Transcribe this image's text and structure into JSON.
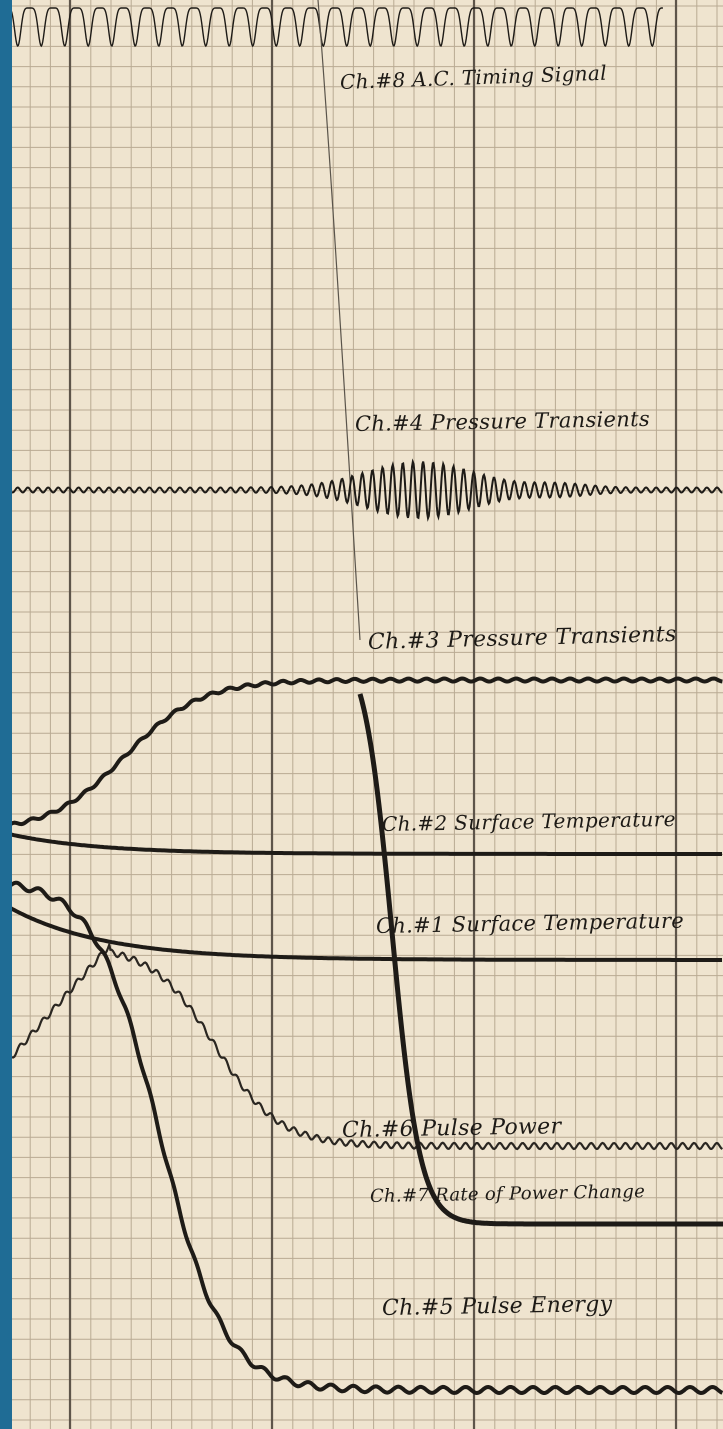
{
  "recording": {
    "channels": [
      {
        "id": "ch8",
        "label": "Ch.#8 A.C. Timing Signal"
      },
      {
        "id": "ch4",
        "label": "Ch.#4 Pressure Transients"
      },
      {
        "id": "ch3",
        "label": "Ch.#3 Pressure Transients"
      },
      {
        "id": "ch2",
        "label": "Ch.#2 Surface Temperature"
      },
      {
        "id": "ch1",
        "label": "Ch.#1 Surface Temperature"
      },
      {
        "id": "ch6",
        "label": "Ch.#6 Pulse Power"
      },
      {
        "id": "ch7",
        "label": "Ch.#7 Rate of Power Change"
      },
      {
        "id": "ch5",
        "label": "Ch.#5 Pulse Energy"
      }
    ]
  },
  "colors": {
    "paper": "#efe4cf",
    "grid_minor": "#b9aa93",
    "grid_major": "#5e554a",
    "trace": "#1e1b17",
    "trace_light": "#5a544b",
    "edge_strip": "#1f6c95"
  }
}
